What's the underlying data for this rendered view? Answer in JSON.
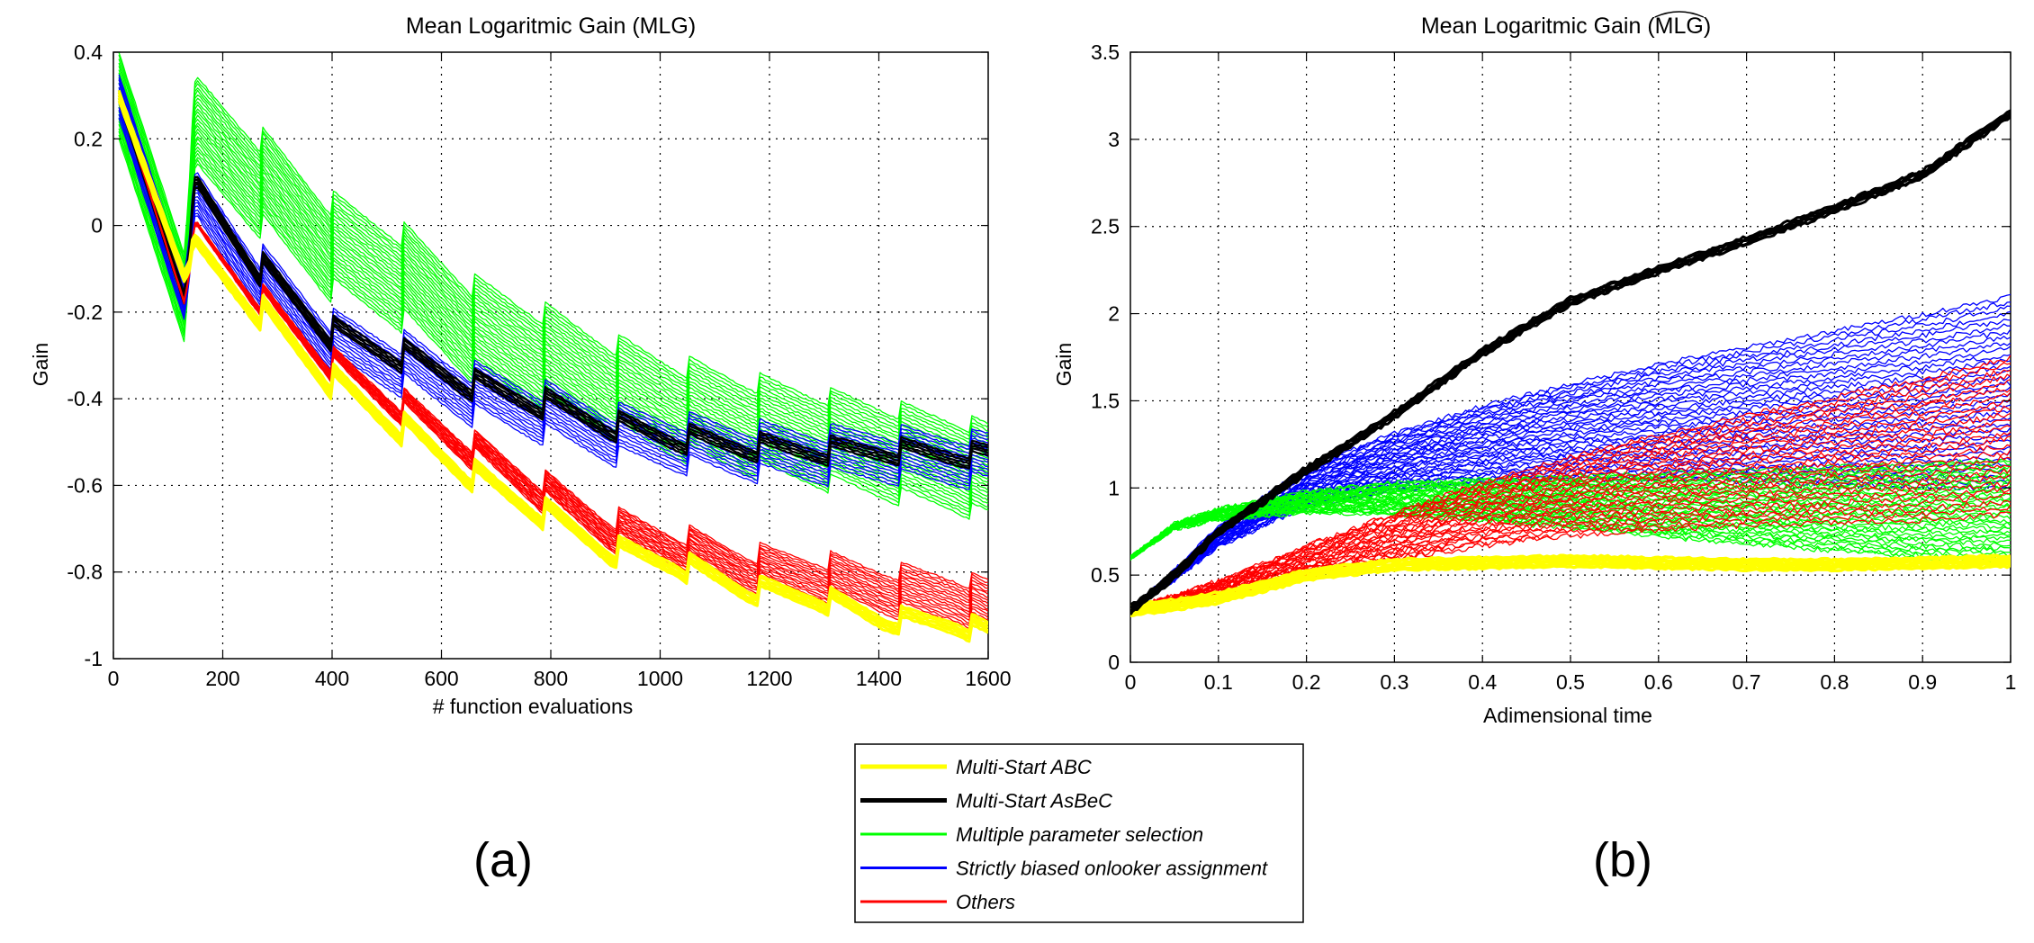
{
  "colors": {
    "multistart_abc": "#ffff00",
    "multistart_asbec": "#000000",
    "multiple_parameter": "#00ff00",
    "strictly_biased": "#0000ff",
    "others": "#ff0000"
  },
  "legend": {
    "entries": [
      {
        "label": "Multi-Start  ABC",
        "color": "#ffff00",
        "thick": true
      },
      {
        "label": "Multi-Start  AsBeC",
        "color": "#000000",
        "thick": true
      },
      {
        "label": "Multiple parameter selection",
        "color": "#00ff00",
        "thick": false
      },
      {
        "label": "Strictly biased onlooker assignment",
        "color": "#0000ff",
        "thick": false
      },
      {
        "label": "Others",
        "color": "#ff0000",
        "thick": false
      }
    ]
  },
  "panel_labels": [
    "(a)",
    "(b)"
  ],
  "chart_data": [
    {
      "type": "line",
      "title": "Mean Logaritmic Gain (MLG)",
      "xlabel": "# function evaluations",
      "ylabel": "Gain",
      "xlim": [
        0,
        1600
      ],
      "ylim": [
        -1,
        0.4
      ],
      "xticks": [
        "0",
        "200",
        "400",
        "600",
        "800",
        "1000",
        "1200",
        "1400",
        "1600"
      ],
      "yticks": [
        "0.4",
        "0.2",
        "0",
        "-0.2",
        "-0.4",
        "-0.6",
        "-0.8",
        "-1"
      ],
      "grid": true,
      "series": [
        {
          "name": "Multi-Start  ABC",
          "x": [
            10,
            130,
            150,
            270,
            400,
            530,
            660,
            780,
            910,
            1030,
            1160,
            1290,
            1410,
            1540,
            1600
          ],
          "values": [
            0.3,
            -0.12,
            -0.06,
            -0.2,
            -0.36,
            -0.47,
            -0.58,
            -0.66,
            -0.75,
            -0.78,
            -0.84,
            -0.86,
            -0.91,
            -0.92,
            -0.94
          ]
        },
        {
          "name": "Multi-Start  AsBeC",
          "x": [
            10,
            130,
            150,
            270,
            400,
            530,
            660,
            780,
            910,
            1030,
            1160,
            1290,
            1410,
            1540,
            1600
          ],
          "values": [
            0.3,
            -0.17,
            0.08,
            -0.1,
            -0.25,
            -0.3,
            -0.37,
            -0.41,
            -0.46,
            -0.49,
            -0.51,
            -0.52,
            -0.52,
            -0.53,
            -0.53
          ]
        },
        {
          "name": "Multiple parameter selection",
          "x": [
            10,
            130,
            150,
            270,
            400,
            530,
            660,
            780,
            910,
            1030,
            1160,
            1290,
            1410,
            1540,
            1600
          ],
          "values": [
            0.3,
            -0.17,
            0.22,
            0.1,
            -0.05,
            -0.12,
            -0.24,
            -0.3,
            -0.37,
            -0.42,
            -0.46,
            -0.49,
            -0.52,
            -0.55,
            -0.57
          ]
        },
        {
          "name": "Strictly biased onlooker assignment",
          "x": [
            10,
            130,
            150,
            270,
            400,
            530,
            660,
            780,
            910,
            1030,
            1160,
            1290,
            1410,
            1540,
            1600
          ],
          "values": [
            0.3,
            -0.17,
            0.05,
            -0.12,
            -0.27,
            -0.32,
            -0.39,
            -0.43,
            -0.48,
            -0.5,
            -0.52,
            -0.53,
            -0.53,
            -0.54,
            -0.54
          ]
        },
        {
          "name": "Others",
          "x": [
            10,
            130,
            150,
            270,
            400,
            530,
            660,
            780,
            910,
            1030,
            1160,
            1290,
            1410,
            1540,
            1600
          ],
          "values": [
            0.3,
            -0.18,
            -0.02,
            -0.17,
            -0.32,
            -0.42,
            -0.52,
            -0.61,
            -0.7,
            -0.74,
            -0.79,
            -0.81,
            -0.84,
            -0.86,
            -0.88
          ]
        }
      ]
    },
    {
      "type": "line",
      "title": "Mean Logaritmic Gain (MLG)",
      "title_hat": true,
      "xlabel": "Adimensional time",
      "ylabel": "Gain",
      "xlim": [
        0,
        1
      ],
      "ylim": [
        0,
        3.5
      ],
      "xticks": [
        "0",
        "0.1",
        "0.2",
        "0.3",
        "0.4",
        "0.5",
        "0.6",
        "0.7",
        "0.8",
        "0.9",
        "1"
      ],
      "yticks": [
        "3.5",
        "3",
        "2.5",
        "2",
        "1.5",
        "1",
        "0.5",
        "0"
      ],
      "grid": true,
      "series": [
        {
          "name": "Multi-Start  ABC",
          "x": [
            0,
            0.05,
            0.1,
            0.2,
            0.3,
            0.4,
            0.5,
            0.6,
            0.7,
            0.8,
            0.9,
            1.0
          ],
          "values": [
            0.3,
            0.33,
            0.37,
            0.5,
            0.56,
            0.57,
            0.58,
            0.57,
            0.56,
            0.56,
            0.57,
            0.58
          ]
        },
        {
          "name": "Multi-Start  AsBeC",
          "x": [
            0,
            0.05,
            0.1,
            0.2,
            0.3,
            0.4,
            0.5,
            0.6,
            0.7,
            0.8,
            0.9,
            1.0
          ],
          "values": [
            0.3,
            0.5,
            0.75,
            1.1,
            1.42,
            1.78,
            2.07,
            2.25,
            2.42,
            2.6,
            2.8,
            3.15
          ]
        },
        {
          "name": "Multiple parameter selection",
          "x": [
            0,
            0.05,
            0.1,
            0.2,
            0.3,
            0.4,
            0.5,
            0.6,
            0.7,
            0.8,
            0.9,
            1.0
          ],
          "values": [
            0.6,
            0.78,
            0.85,
            0.92,
            0.94,
            0.93,
            0.92,
            0.9,
            0.89,
            0.88,
            0.87,
            0.86
          ]
        },
        {
          "name": "Strictly biased onlooker assignment",
          "x": [
            0,
            0.05,
            0.1,
            0.2,
            0.3,
            0.4,
            0.5,
            0.6,
            0.7,
            0.8,
            0.9,
            1.0
          ],
          "values": [
            0.3,
            0.5,
            0.72,
            1.0,
            1.15,
            1.25,
            1.32,
            1.38,
            1.42,
            1.46,
            1.5,
            1.55
          ]
        },
        {
          "name": "Others",
          "x": [
            0,
            0.05,
            0.1,
            0.2,
            0.3,
            0.4,
            0.5,
            0.6,
            0.7,
            0.8,
            0.9,
            1.0
          ],
          "values": [
            0.3,
            0.36,
            0.42,
            0.58,
            0.72,
            0.85,
            0.95,
            1.03,
            1.1,
            1.16,
            1.22,
            1.3
          ]
        }
      ]
    }
  ]
}
